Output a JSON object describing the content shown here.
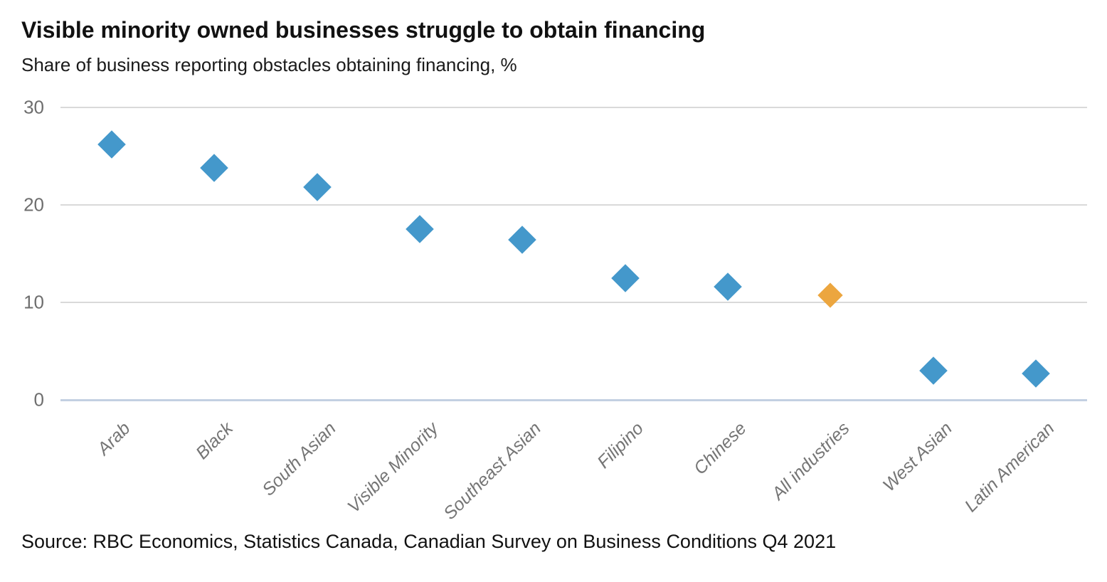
{
  "header": {
    "title": "Visible minority owned businesses struggle to obtain financing",
    "subtitle": "Share of business reporting obstacles obtaining financing, %"
  },
  "footer": {
    "source": "Source: RBC Economics, Statistics Canada, Canadian Survey on Business Conditions Q4 2021"
  },
  "chart_data": {
    "type": "scatter",
    "marker_shape": "diamond",
    "title": "Visible minority owned businesses struggle to obtain financing",
    "subtitle": "Share of business reporting obstacles obtaining financing, %",
    "source": "Source: RBC Economics, Statistics Canada, Canadian Survey on Business Conditions Q4 2021",
    "categories": [
      "Arab",
      "Black",
      "South Asian",
      "Visible Minority",
      "Southeast Asian",
      "Filipino",
      "Chinese",
      "All industries",
      "West Asian",
      "Latin American"
    ],
    "values": [
      26.2,
      23.8,
      21.8,
      17.5,
      16.4,
      12.5,
      11.6,
      10.7,
      3.0,
      2.7
    ],
    "highlight_category": "All industries",
    "colors": {
      "default": "#4498cb",
      "highlight": "#eca63f"
    },
    "marker_px": {
      "default": 28,
      "highlight": 25
    },
    "xlabel": "",
    "ylabel": "",
    "ylim": [
      0,
      30
    ],
    "yticks": [
      0,
      10,
      20,
      30
    ],
    "grid": "horizontal",
    "gridline_color": "#d9d9d9",
    "zero_line_color": "#c3d0e2",
    "tick_label_color": "#6e6e6e",
    "category_label_color": "#757575",
    "legend": "none"
  }
}
